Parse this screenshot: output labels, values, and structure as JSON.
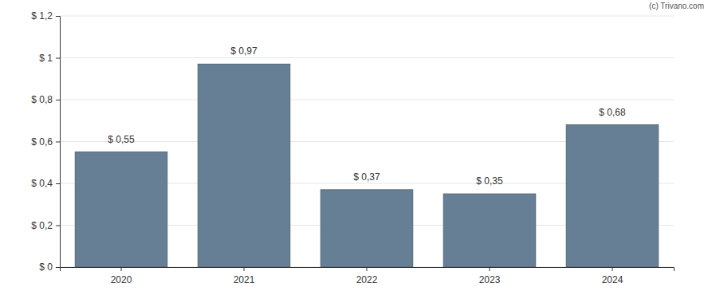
{
  "chart_data": {
    "type": "bar",
    "categories": [
      "2020",
      "2021",
      "2022",
      "2023",
      "2024"
    ],
    "values": [
      0.55,
      0.97,
      0.37,
      0.35,
      0.68
    ],
    "value_labels": [
      "$ 0,55",
      "$ 0,97",
      "$ 0,37",
      "$ 0,35",
      "$ 0,68"
    ],
    "color": "#667f94",
    "ylim": [
      0,
      1.2
    ],
    "yticks": [
      {
        "value": 0,
        "label": "$ 0"
      },
      {
        "value": 0.2,
        "label": "$ 0,2"
      },
      {
        "value": 0.4,
        "label": "$ 0,4"
      },
      {
        "value": 0.6,
        "label": "$ 0,6"
      },
      {
        "value": 0.8,
        "label": "$ 0,8"
      },
      {
        "value": 1,
        "label": "$ 1"
      },
      {
        "value": 1.2,
        "label": "$ 1,2"
      }
    ],
    "grid": true,
    "data_labels": true,
    "annotations": [
      "(c) Trivano.com"
    ]
  }
}
